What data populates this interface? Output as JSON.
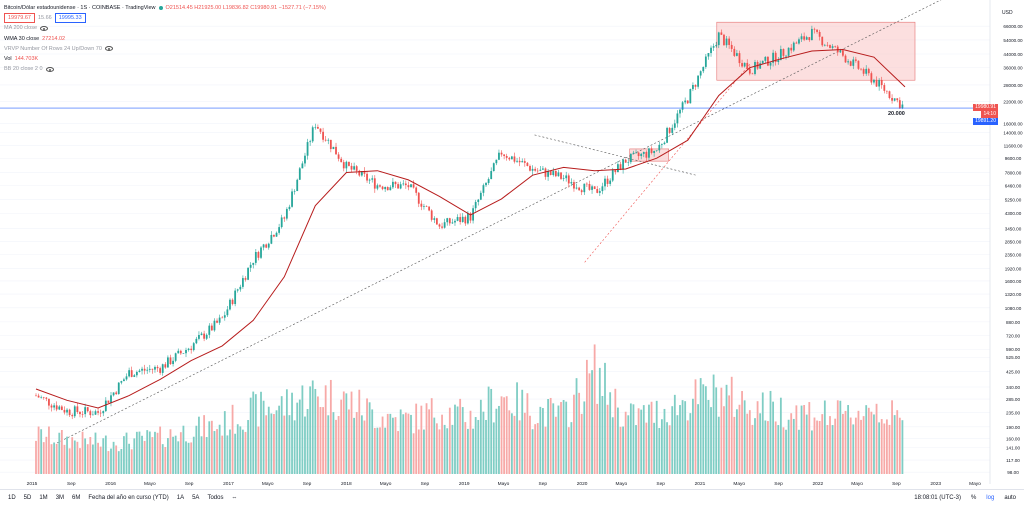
{
  "legend": {
    "title": "Bitcoin/Dólar estadounidense · 1S · COINBASE · TradingView",
    "ohlc": "O21514.45 H21925.00 L19836.82 C19980.91 −1527.71 (−7.15%)",
    "sell": "19979.67",
    "spread": "15.66",
    "buy": "19995.33",
    "indicators": [
      {
        "label": "MA 200 close",
        "value": ""
      },
      {
        "label": "WMA 30 close",
        "value": "27214.02"
      },
      {
        "label": "VRVP Number Of Rows 24 Up/Down 70",
        "value": ""
      },
      {
        "label": "Vol",
        "value": "144.703K"
      },
      {
        "label": "BB 20 close 2 0",
        "value": ""
      }
    ]
  },
  "price_scale": {
    "currency": "USD",
    "current_price": "19980.91",
    "current_sub": "14:10",
    "line_price": "19891.20",
    "annotation": "20.000",
    "ticks": [
      "66000.00",
      "54000.00",
      "44000.00",
      "36000.00",
      "28000.00",
      "22000.00",
      "16000.00",
      "14000.00",
      "11600.00",
      "9600.00",
      "7800.00",
      "6460.00",
      "5250.00",
      "4300.00",
      "3450.00",
      "2850.00",
      "2350.00",
      "1920.00",
      "1600.00",
      "1320.00",
      "1080.00",
      "880.00",
      "720.00",
      "590.00",
      "525.00",
      "425.00",
      "340.00",
      "285.00",
      "235.00",
      "190.00",
      "160.00",
      "141.00",
      "117.00",
      "98.00"
    ]
  },
  "time_axis": {
    "labels": [
      "2015",
      "Sep",
      "2016",
      "Mayo",
      "Sep",
      "2017",
      "Mayo",
      "Sep",
      "2018",
      "Mayo",
      "Sep",
      "2019",
      "Mayo",
      "Sep",
      "2020",
      "Mayo",
      "Sep",
      "2021",
      "Mayo",
      "Sep",
      "2022",
      "Mayo",
      "Sep",
      "2023",
      "Mayo"
    ]
  },
  "bottombar": {
    "ranges": [
      "1D",
      "5D",
      "1M",
      "3M",
      "6M",
      "Fecha del año en curso (YTD)",
      "1A",
      "5A",
      "Todos"
    ],
    "time": "18:08:01 (UTC-3)",
    "options": [
      "%",
      "log",
      "auto"
    ]
  },
  "colors": {
    "up": "#26a69a",
    "down": "#ef5350",
    "wma": "#b71c1c",
    "up_vol": "#7fcdc4",
    "down_vol": "#f7a9a7",
    "zone": "#f8b9b9",
    "hline": "#2962ff"
  },
  "chart_data": {
    "type": "line",
    "title": "Bitcoin/Dólar estadounidense",
    "ylabel": "USD",
    "log_scale": true,
    "ylim": [
      90,
      90000
    ],
    "x": [
      "2015-01",
      "2015-05",
      "2015-09",
      "2016-01",
      "2016-05",
      "2016-09",
      "2017-01",
      "2017-05",
      "2017-09",
      "2017-12",
      "2018-03",
      "2018-06",
      "2018-09",
      "2018-12",
      "2019-03",
      "2019-06",
      "2019-09",
      "2019-12",
      "2020-03",
      "2020-06",
      "2020-09",
      "2020-12",
      "2021-03",
      "2021-06",
      "2021-09",
      "2021-11",
      "2022-02",
      "2022-05",
      "2022-08"
    ],
    "series": [
      {
        "name": "close",
        "values": [
          300,
          240,
          235,
          420,
          450,
          620,
          920,
          2200,
          4000,
          16000,
          8500,
          6500,
          6400,
          3600,
          4100,
          10500,
          8200,
          7200,
          5800,
          9300,
          10800,
          23000,
          58000,
          35000,
          44000,
          60000,
          43000,
          30000,
          19980
        ]
      },
      {
        "name": "WMA 30 close",
        "values": [
          330,
          280,
          250,
          300,
          380,
          500,
          620,
          900,
          1700,
          4800,
          7800,
          8000,
          7000,
          5500,
          4200,
          5300,
          7500,
          8400,
          8000,
          8200,
          9600,
          12500,
          24000,
          36000,
          41000,
          46000,
          47000,
          42000,
          27214
        ]
      }
    ],
    "volume": [
      160,
      140,
      130,
      135,
      150,
      180,
      200,
      260,
      280,
      330,
      300,
      240,
      220,
      260,
      230,
      320,
      260,
      240,
      420,
      230,
      250,
      300,
      330,
      280,
      260,
      250,
      230,
      280,
      200
    ]
  }
}
